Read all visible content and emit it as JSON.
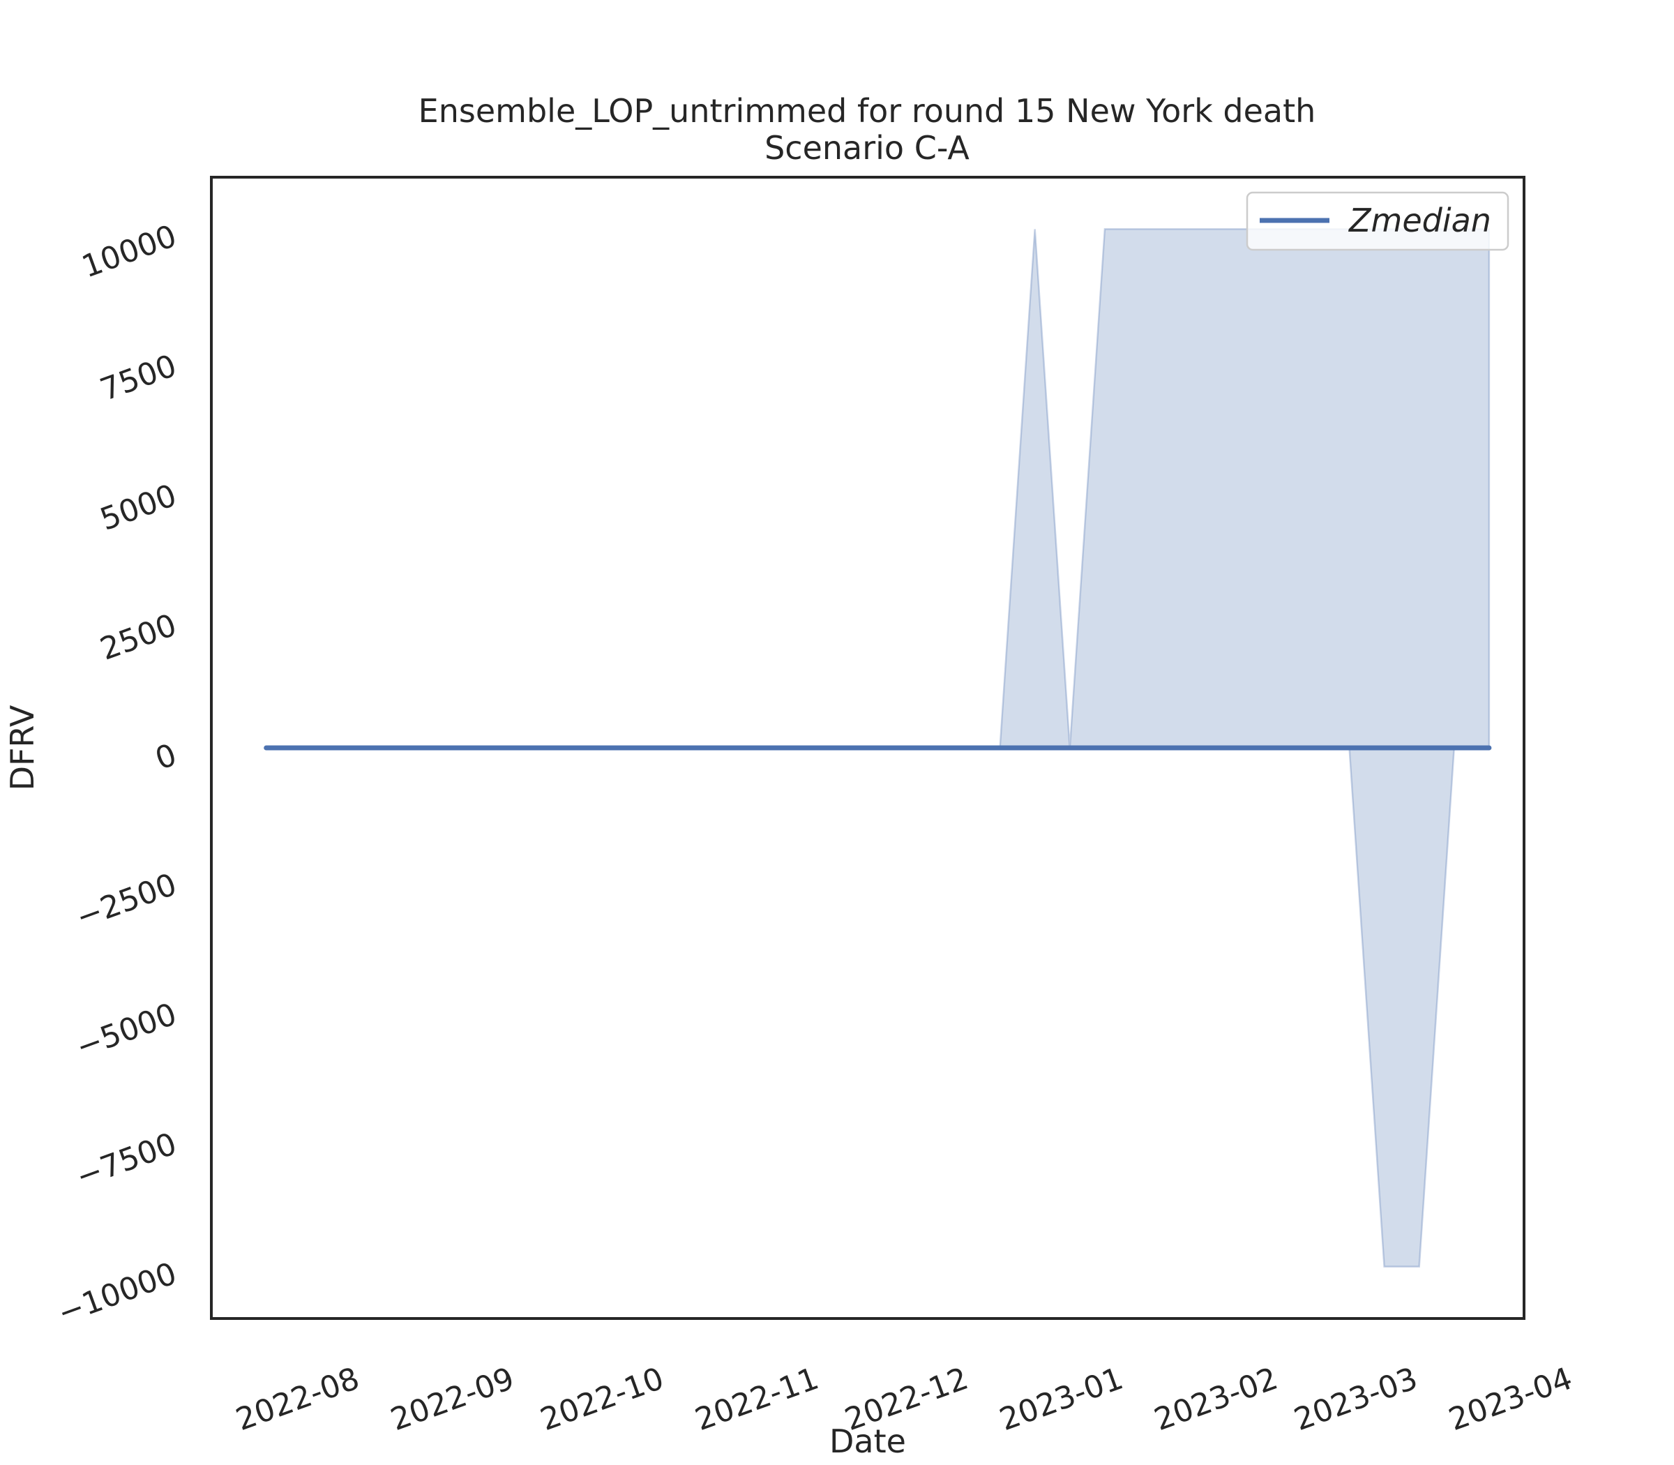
{
  "chart_data": {
    "type": "line",
    "title": "Ensemble_LOP_untrimmed for round 15 New York death",
    "subtitle": "Scenario C-A",
    "xlabel": "Date",
    "ylabel": "DFRV",
    "xlim": [
      "2022-07-12",
      "2023-04-01"
    ],
    "ylim": [
      -11000,
      11000
    ],
    "x_ticks": [
      "2022-08",
      "2022-09",
      "2022-10",
      "2022-11",
      "2022-12",
      "2023-01",
      "2023-02",
      "2023-03",
      "2023-04"
    ],
    "y_ticks": [
      10000,
      7500,
      5000,
      2500,
      0,
      -2500,
      -5000,
      -7500,
      -10000
    ],
    "y_tick_labels": [
      "10000",
      "7500",
      "5000",
      "2500",
      "0",
      "−2500",
      "−5000",
      "−7500",
      "−10000"
    ],
    "grid": false,
    "legend_position": "top-right",
    "series": [
      {
        "name": "Zmedian",
        "color": "#4c72b0",
        "x": [
          "2022-07-23",
          "2023-03-25"
        ],
        "y": [
          0,
          0
        ]
      }
    ],
    "band": {
      "color": "#4c72b0",
      "opacity": 0.25,
      "x": [
        "2022-07-23",
        "2022-12-17",
        "2022-12-24",
        "2022-12-31",
        "2023-01-07",
        "2023-02-25",
        "2023-03-04",
        "2023-03-11",
        "2023-03-18",
        "2023-03-25"
      ],
      "lower": [
        0,
        0,
        0,
        0,
        0,
        0,
        -10000,
        -10000,
        0,
        0
      ],
      "upper": [
        0,
        0,
        10000,
        0,
        10000,
        10000,
        10000,
        10000,
        10000,
        10000
      ]
    }
  }
}
